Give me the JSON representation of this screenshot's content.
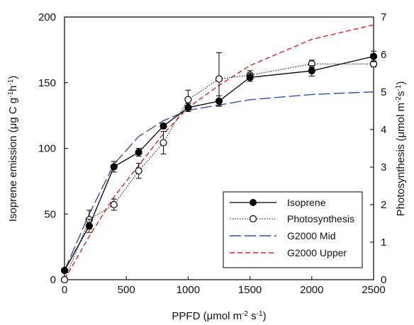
{
  "chart_data": {
    "type": "line",
    "xlabel": {
      "pre": "PPFD (",
      "mu": "μ",
      "unit": "mol m",
      "sup1": "-2",
      "mid": " s",
      "sup2": "-1",
      "post": ")"
    },
    "ylabel_left": {
      "pre": "Isoprene emission (",
      "mu": "μ",
      "g": "g C g",
      "sup1": "-1",
      "h": "h",
      "sup2": "-1",
      "post": ")"
    },
    "ylabel_right": {
      "pre": "Photosynthesis (",
      "mu": "μ",
      "unit": "mol m",
      "sup1": "-2",
      "s": "s",
      "sup2": "-1",
      "post": ")"
    },
    "xlim": [
      0,
      2500
    ],
    "ylim_left": [
      0,
      200
    ],
    "ylim_right": [
      0,
      7
    ],
    "x_ticks": [
      "0",
      "500",
      "1000",
      "1500",
      "2000",
      "2500"
    ],
    "y_left_ticks": [
      "0",
      "50",
      "100",
      "150",
      "200"
    ],
    "y_right_ticks": [
      "0",
      "1",
      "2",
      "3",
      "4",
      "5",
      "6",
      "7"
    ],
    "series": [
      {
        "name": "Isoprene",
        "axis": "left",
        "style": "solid-filled-circle",
        "color": "#000000",
        "x": [
          0,
          200,
          400,
          600,
          800,
          1000,
          1250,
          1500,
          2000,
          2500
        ],
        "y": [
          7,
          41,
          86,
          97,
          117,
          131,
          136,
          154,
          159,
          170
        ],
        "err": [
          0,
          5,
          4,
          3,
          2,
          3,
          4,
          3,
          4,
          4
        ]
      },
      {
        "name": "Photosynthesis",
        "axis": "right",
        "style": "dotted-open-circle",
        "color": "#000000",
        "x": [
          0,
          200,
          400,
          600,
          800,
          1000,
          1250,
          1500,
          2000,
          2500
        ],
        "y": [
          0,
          1.6,
          2.0,
          2.9,
          3.65,
          4.8,
          5.35,
          5.45,
          5.75,
          5.75
        ],
        "err": [
          0,
          0.25,
          0.15,
          0.2,
          0.3,
          0.25,
          0.7,
          0.12,
          0.1,
          0.08
        ]
      },
      {
        "name": "G2000 Mid",
        "axis": "left",
        "style": "long-dash",
        "color": "#3050b0",
        "x": [
          0,
          200,
          400,
          600,
          800,
          1000,
          1250,
          1500,
          2000,
          2500
        ],
        "y": [
          7,
          50,
          88,
          109,
          121,
          129,
          133,
          137,
          141,
          143
        ]
      },
      {
        "name": "G2000 Upper",
        "axis": "left",
        "style": "short-dash",
        "color": "#e02020",
        "x": [
          0,
          200,
          400,
          600,
          800,
          1000,
          1250,
          1500,
          2000,
          2500
        ],
        "y": [
          0,
          33,
          63,
          87,
          111,
          131,
          148,
          163,
          183,
          194
        ]
      }
    ],
    "legend": {
      "position": "bottom-right",
      "entries": [
        "Isoprene",
        "Photosynthesis",
        "G2000 Mid",
        "G2000 Upper"
      ]
    }
  }
}
